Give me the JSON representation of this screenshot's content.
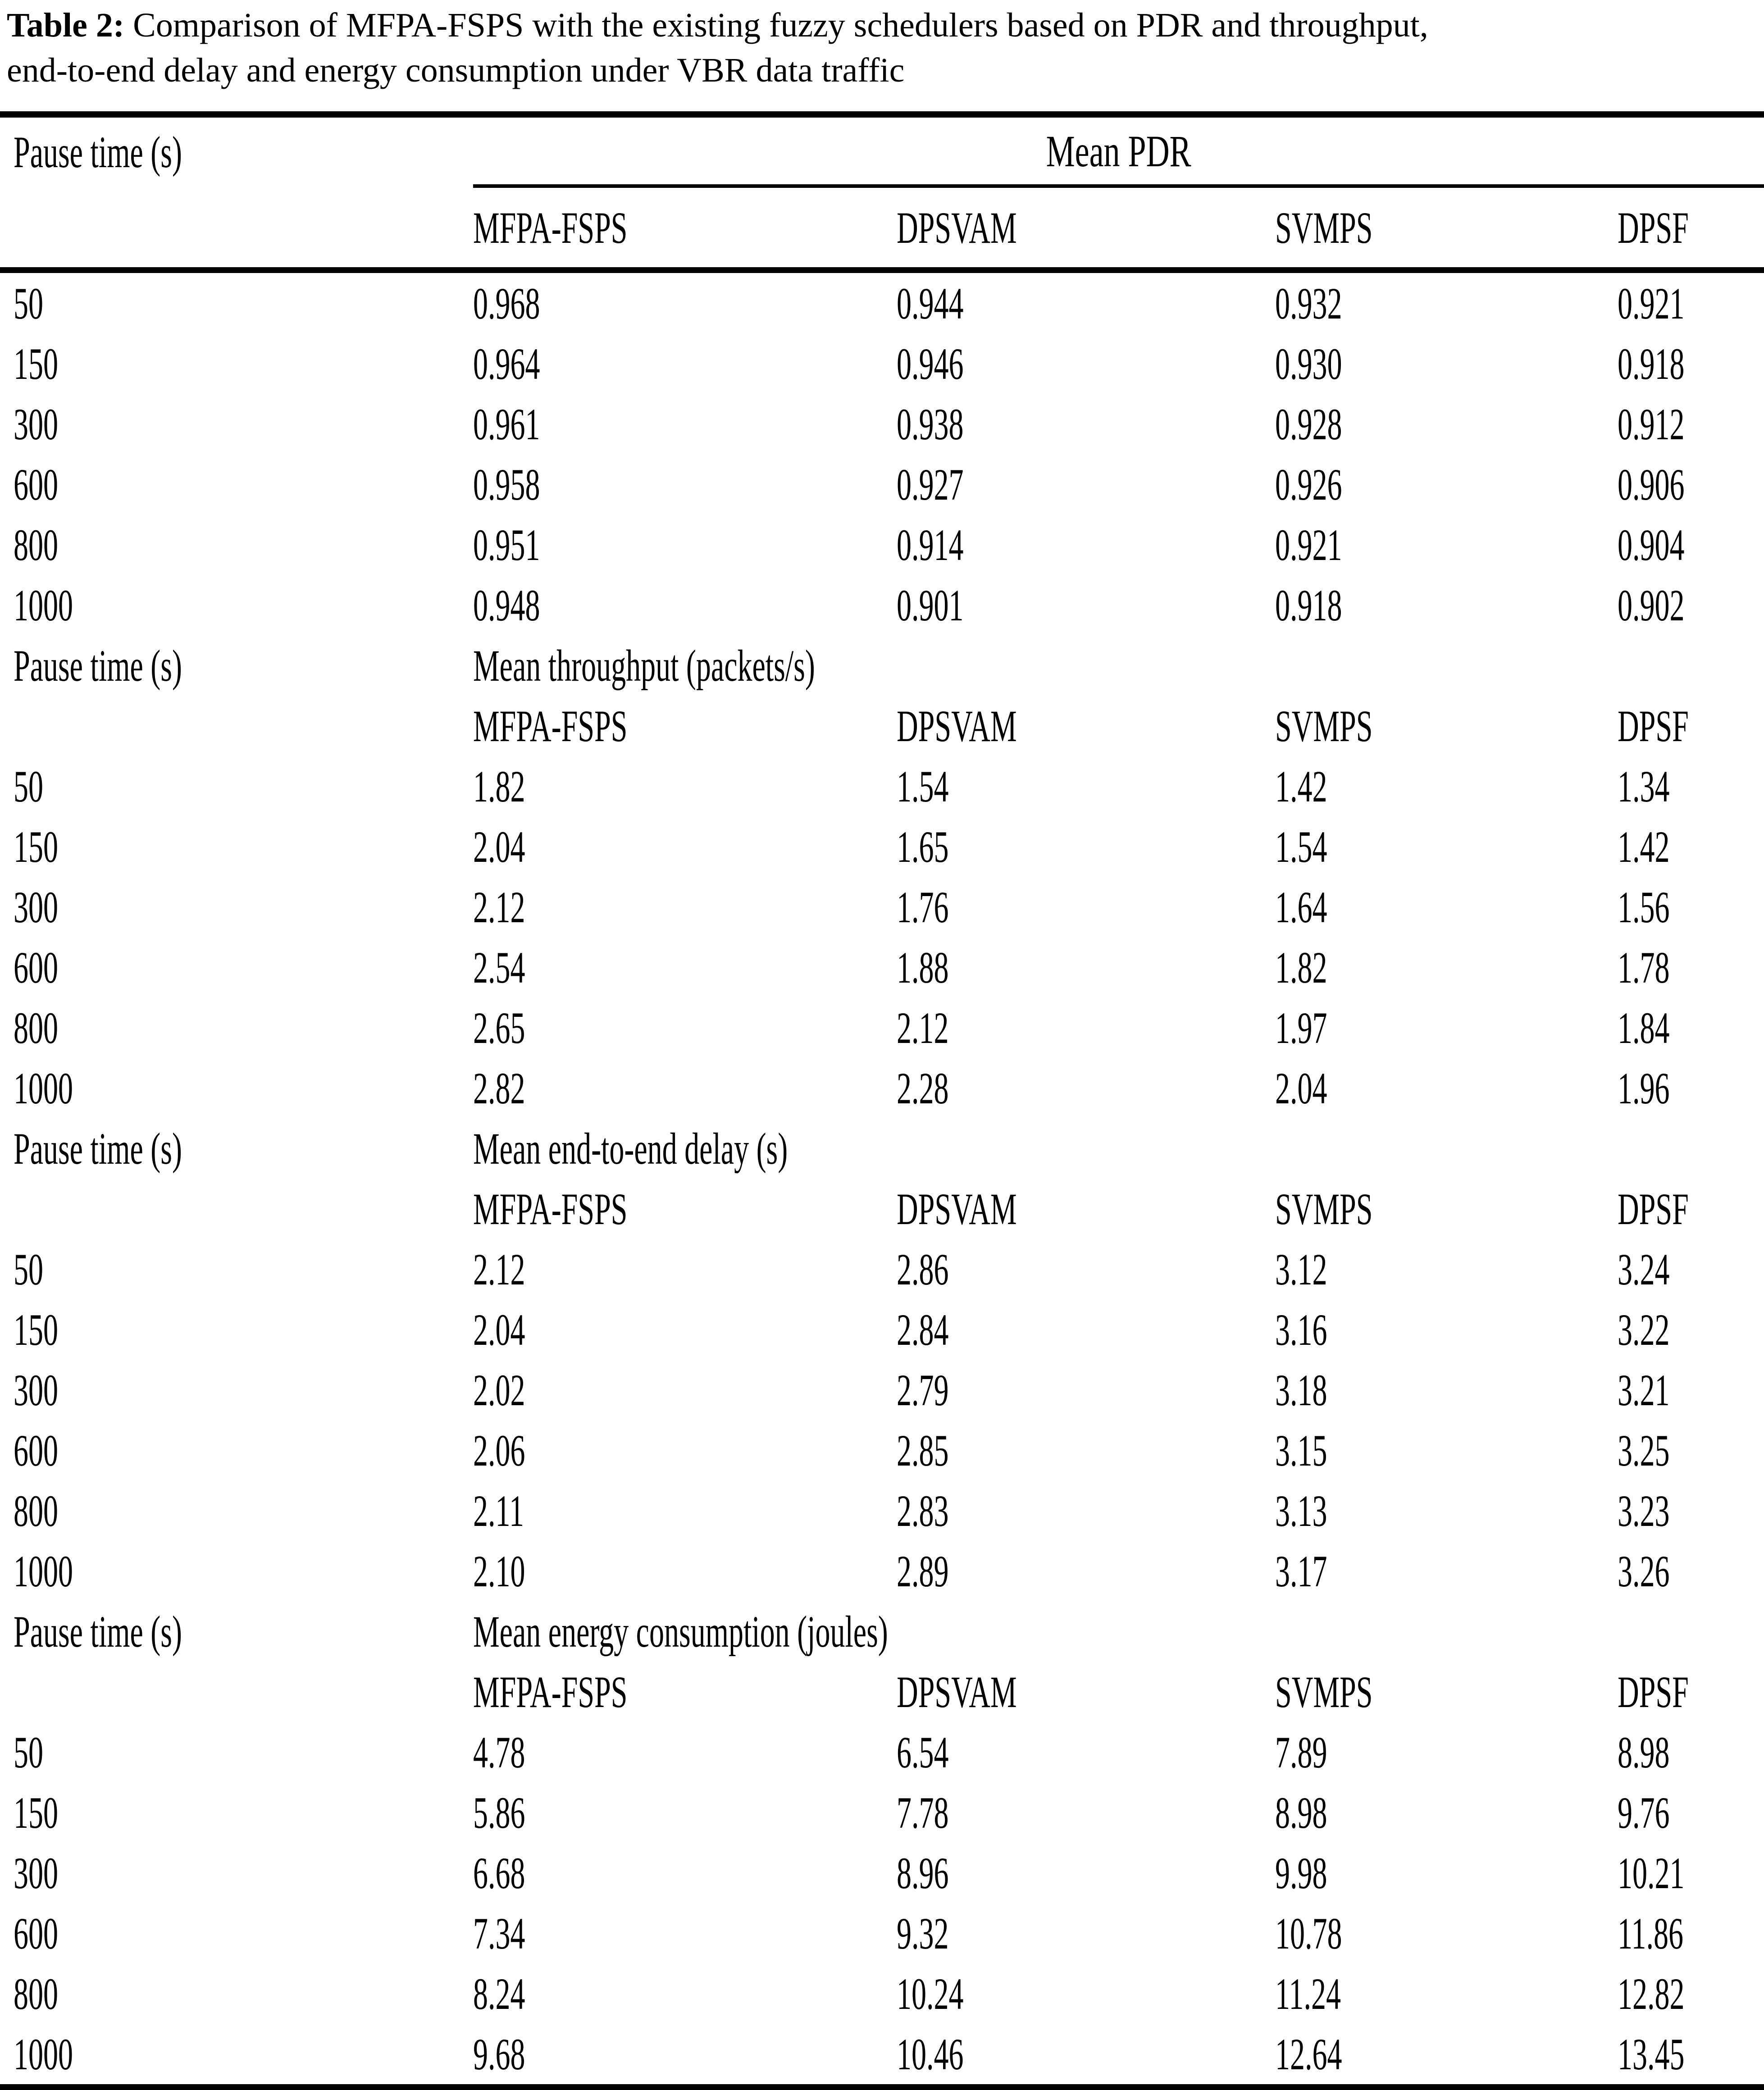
{
  "caption": {
    "label": "Table 2:",
    "line1": "Comparison of MFPA-FSPS with the existing fuzzy schedulers based on PDR and throughput,",
    "line2": "end-to-end delay and energy consumption under VBR data traffic"
  },
  "row_axis_label": "Pause time (s)",
  "schedulers": [
    "MFPA-FSPS",
    "DPSVAM",
    "SVMPS",
    "DPSF"
  ],
  "pause_times": [
    "50",
    "150",
    "300",
    "600",
    "800",
    "1000"
  ],
  "sections": [
    {
      "metric": "Mean PDR",
      "rows": [
        [
          "0.968",
          "0.944",
          "0.932",
          "0.921"
        ],
        [
          "0.964",
          "0.946",
          "0.930",
          "0.918"
        ],
        [
          "0.961",
          "0.938",
          "0.928",
          "0.912"
        ],
        [
          "0.958",
          "0.927",
          "0.926",
          "0.906"
        ],
        [
          "0.951",
          "0.914",
          "0.921",
          "0.904"
        ],
        [
          "0.948",
          "0.901",
          "0.918",
          "0.902"
        ]
      ]
    },
    {
      "metric": "Mean throughput (packets/s)",
      "rows": [
        [
          "1.82",
          "1.54",
          "1.42",
          "1.34"
        ],
        [
          "2.04",
          "1.65",
          "1.54",
          "1.42"
        ],
        [
          "2.12",
          "1.76",
          "1.64",
          "1.56"
        ],
        [
          "2.54",
          "1.88",
          "1.82",
          "1.78"
        ],
        [
          "2.65",
          "2.12",
          "1.97",
          "1.84"
        ],
        [
          "2.82",
          "2.28",
          "2.04",
          "1.96"
        ]
      ]
    },
    {
      "metric": "Mean end-to-end delay (s)",
      "rows": [
        [
          "2.12",
          "2.86",
          "3.12",
          "3.24"
        ],
        [
          "2.04",
          "2.84",
          "3.16",
          "3.22"
        ],
        [
          "2.02",
          "2.79",
          "3.18",
          "3.21"
        ],
        [
          "2.06",
          "2.85",
          "3.15",
          "3.25"
        ],
        [
          "2.11",
          "2.83",
          "3.13",
          "3.23"
        ],
        [
          "2.10",
          "2.89",
          "3.17",
          "3.26"
        ]
      ]
    },
    {
      "metric": "Mean energy consumption (joules)",
      "rows": [
        [
          "4.78",
          "6.54",
          "7.89",
          "8.98"
        ],
        [
          "5.86",
          "7.78",
          "8.98",
          "9.76"
        ],
        [
          "6.68",
          "8.96",
          "9.98",
          "10.21"
        ],
        [
          "7.34",
          "9.32",
          "10.78",
          "11.86"
        ],
        [
          "8.24",
          "10.24",
          "11.24",
          "12.82"
        ],
        [
          "9.68",
          "10.46",
          "12.64",
          "13.45"
        ]
      ]
    }
  ],
  "colors": {
    "text": "#000000",
    "background": "#ffffff",
    "rule": "#000000"
  }
}
